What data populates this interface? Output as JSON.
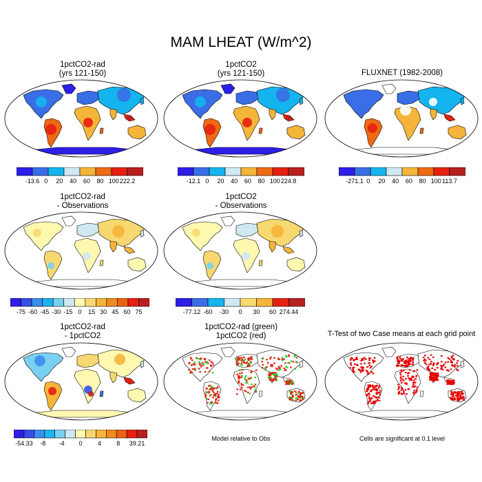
{
  "title": "MAM LHEAT (W/m^2)",
  "colors": {
    "ocean": "#ffffff",
    "frame": "#000000",
    "sig_land": "#e60000",
    "green": "#22cc22"
  },
  "panels": [
    {
      "id": "p1",
      "title1": "1pctCO2-rad",
      "title2": "(yrs 121-150)",
      "style": "abs"
    },
    {
      "id": "p2",
      "title1": "1pctCO2",
      "title2": "(yrs 121-150)",
      "style": "abs"
    },
    {
      "id": "p3",
      "title1": "FLUXNET (1982-2008)",
      "title2": "",
      "style": "abs_obs"
    },
    {
      "id": "p4",
      "title1": "1pctCO2-rad",
      "title2": "- Observations",
      "style": "diff"
    },
    {
      "id": "p5",
      "title1": "1pctCO2",
      "title2": "- Observations",
      "style": "diff"
    },
    {
      "id": "p6",
      "title1": "1pctCO2-rad",
      "title2": "- 1pctCO2",
      "style": "diff2"
    },
    {
      "id": "p7",
      "title1": "1pctCO2-rad (green)",
      "title2": "1pctCO2 (red)",
      "style": "rg"
    },
    {
      "id": "p8",
      "title1": "T-Test of two Case means at each grid point",
      "title2": "",
      "style": "ttest"
    }
  ],
  "colorbars": [
    {
      "id": "cb1",
      "colors": [
        "#2d1ee8",
        "#3a6ee6",
        "#14b4ee",
        "#cfe8f2",
        "#f5b53a",
        "#ee6a14",
        "#e62010",
        "#b82020"
      ],
      "labels": [
        "-13.6",
        "0",
        "20",
        "40",
        "60",
        "80",
        "100",
        "222.2"
      ]
    },
    {
      "id": "cb2",
      "colors": [
        "#2d1ee8",
        "#3a6ee6",
        "#14b4ee",
        "#cfe8f2",
        "#f5b53a",
        "#ee6a14",
        "#e62010",
        "#b82020"
      ],
      "labels": [
        "-12.1",
        "0",
        "20",
        "40",
        "60",
        "80",
        "100",
        "224.8"
      ]
    },
    {
      "id": "cb3",
      "colors": [
        "#2d1ee8",
        "#3a6ee6",
        "#14b4ee",
        "#cfe8f2",
        "#f5b53a",
        "#ee6a14",
        "#e62010",
        "#b82020"
      ],
      "labels": [
        "-271.1",
        "0",
        "20",
        "40",
        "60",
        "80",
        "100",
        "113.7"
      ]
    },
    {
      "id": "cb4",
      "colors": [
        "#2d1ee8",
        "#3550e6",
        "#3a8ef0",
        "#1eb4ee",
        "#7ad0f0",
        "#cfe8f2",
        "#fff8b0",
        "#f8d870",
        "#f5b53a",
        "#f08a20",
        "#ee6014",
        "#e62010",
        "#b82020"
      ],
      "labels": [
        "-75",
        "-60",
        "-45",
        "-30",
        "-15",
        "0",
        "15",
        "30",
        "45",
        "60",
        "75"
      ]
    },
    {
      "id": "cb5",
      "colors": [
        "#2d1ee8",
        "#3a6ee6",
        "#14b4ee",
        "#cfe8f2",
        "#f8d870",
        "#f5b53a",
        "#e62010",
        "#b82020"
      ],
      "labels": [
        "-77.12",
        "-60",
        "-30",
        "0",
        "30",
        "60",
        "274.44"
      ]
    },
    {
      "id": "cb6",
      "colors": [
        "#2d1ee8",
        "#3550e6",
        "#3a8ef0",
        "#1eb4ee",
        "#7ad0f0",
        "#cfe8f2",
        "#fff8b0",
        "#f8d870",
        "#f5b53a",
        "#f08a20",
        "#ee6014",
        "#e62010",
        "#b82020"
      ],
      "labels": [
        "-54.33",
        "-8",
        "-4",
        "0",
        "4",
        "8",
        "39.21"
      ]
    }
  ],
  "notes": {
    "model_rel": "Model relative to Obs",
    "signif": "Cells are significant at 0.1 level"
  }
}
